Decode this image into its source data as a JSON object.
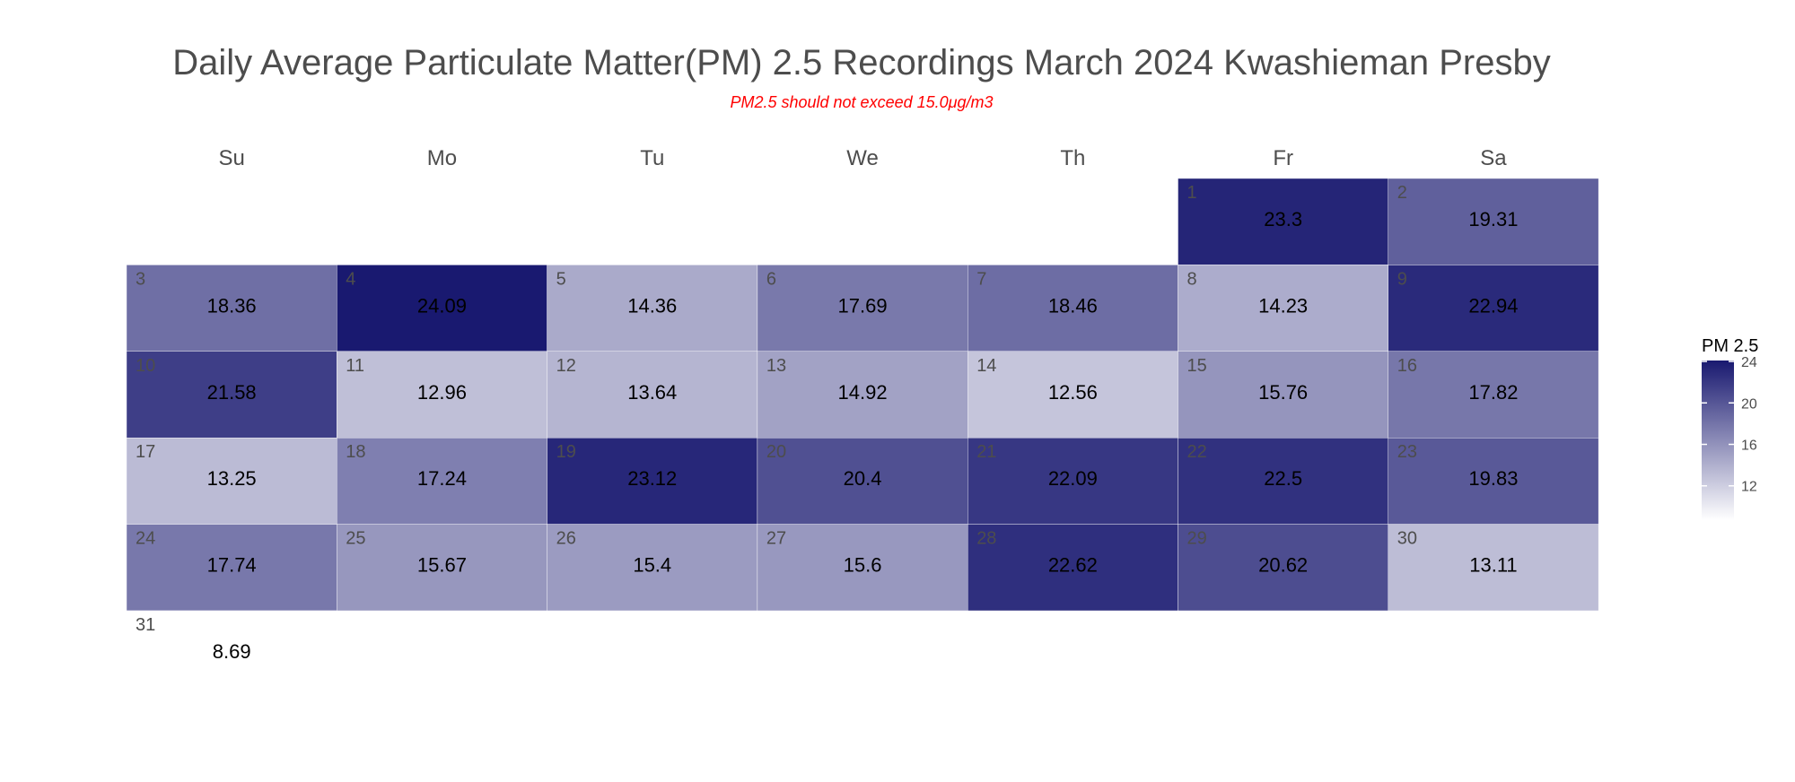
{
  "chart_data": {
    "type": "heatmap",
    "title": "Daily Average Particulate Matter(PM) 2.5 Recordings March 2024 Kwashieman Presby",
    "subtitle": "PM2.5 should not exceed 15.0μg/m3",
    "weekdays": [
      "Su",
      "Mo",
      "Tu",
      "We",
      "Th",
      "Fr",
      "Sa"
    ],
    "first_weekday_index": 5,
    "days": [
      1,
      2,
      3,
      4,
      5,
      6,
      7,
      8,
      9,
      10,
      11,
      12,
      13,
      14,
      15,
      16,
      17,
      18,
      19,
      20,
      21,
      22,
      23,
      24,
      25,
      26,
      27,
      28,
      29,
      30,
      31
    ],
    "values": [
      23.3,
      19.31,
      18.36,
      24.09,
      14.36,
      17.69,
      18.46,
      14.23,
      22.94,
      21.58,
      12.96,
      13.64,
      14.92,
      12.56,
      15.76,
      17.82,
      13.25,
      17.24,
      23.12,
      20.4,
      22.09,
      22.5,
      19.83,
      17.74,
      15.67,
      15.4,
      15.6,
      22.62,
      20.62,
      13.11,
      8.69
    ],
    "legend": {
      "title": "PM 2.5",
      "ticks": [
        12,
        16,
        20,
        24
      ],
      "range": [
        8.69,
        24.09
      ],
      "color_low": "#ffffff",
      "color_high": "#191970"
    }
  }
}
